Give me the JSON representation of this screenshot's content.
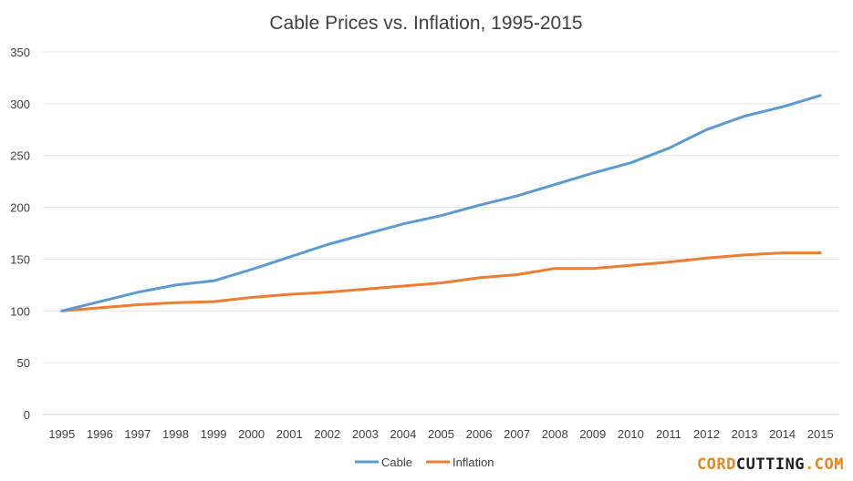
{
  "chart_data": {
    "type": "line",
    "title": "Cable Prices vs. Inflation, 1995-2015",
    "xlabel": "",
    "ylabel": "",
    "ylim": [
      0,
      350
    ],
    "y_ticks": [
      0,
      50,
      100,
      150,
      200,
      250,
      300,
      350
    ],
    "grid": true,
    "legend_position": "bottom",
    "x": [
      "1995",
      "1996",
      "1997",
      "1998",
      "1999",
      "2000",
      "2001",
      "2002",
      "2003",
      "2004",
      "2005",
      "2006",
      "2007",
      "2008",
      "2009",
      "2010",
      "2011",
      "2012",
      "2013",
      "2014",
      "2015"
    ],
    "series": [
      {
        "name": "Cable",
        "color": "#5b9bd5",
        "values": [
          100,
          109,
          118,
          125,
          129,
          140,
          152,
          164,
          174,
          184,
          192,
          202,
          211,
          222,
          233,
          243,
          257,
          275,
          288,
          297,
          308
        ]
      },
      {
        "name": "Inflation",
        "color": "#ed7d31",
        "values": [
          100,
          103,
          106,
          108,
          109,
          113,
          116,
          118,
          121,
          124,
          127,
          132,
          135,
          141,
          141,
          144,
          147,
          151,
          154,
          156,
          156
        ]
      }
    ]
  },
  "watermark": {
    "part1": "CORD",
    "part2": "CUTTING",
    "part3": ".COM"
  }
}
